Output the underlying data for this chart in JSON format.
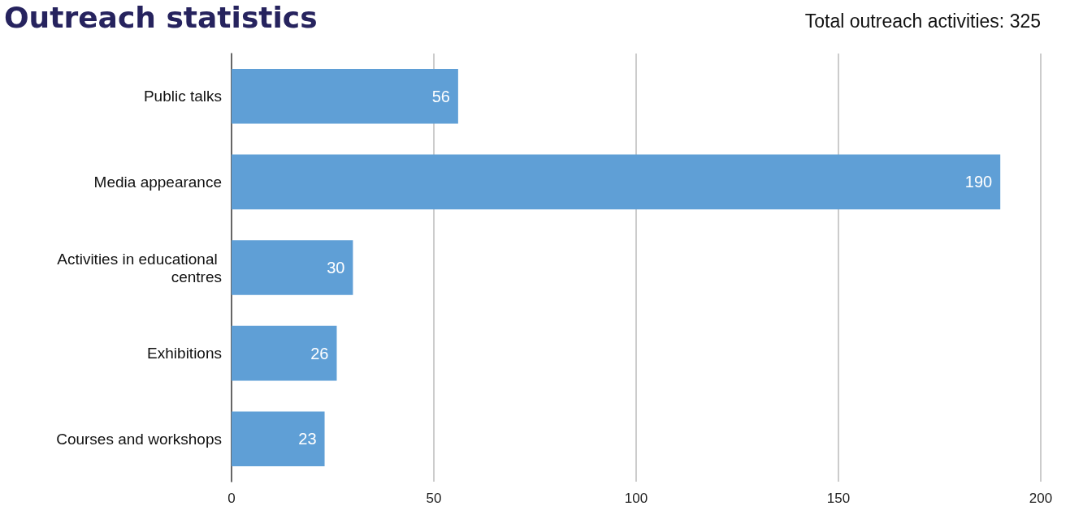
{
  "chart_data": {
    "type": "bar",
    "orientation": "horizontal",
    "title": "Outreach statistics",
    "annotations": [
      "Total outreach activities: 325"
    ],
    "categories": [
      "Public talks",
      "Media appearance",
      "Activities in educational centres",
      "Exhibitions",
      "Courses and workshops"
    ],
    "values": [
      56,
      190,
      30,
      26,
      23
    ],
    "color": "#5f9fd6",
    "xlim": [
      0,
      200
    ],
    "xticks": [
      0,
      50,
      100,
      150,
      200
    ],
    "grid": "x",
    "data_labels": true
  }
}
